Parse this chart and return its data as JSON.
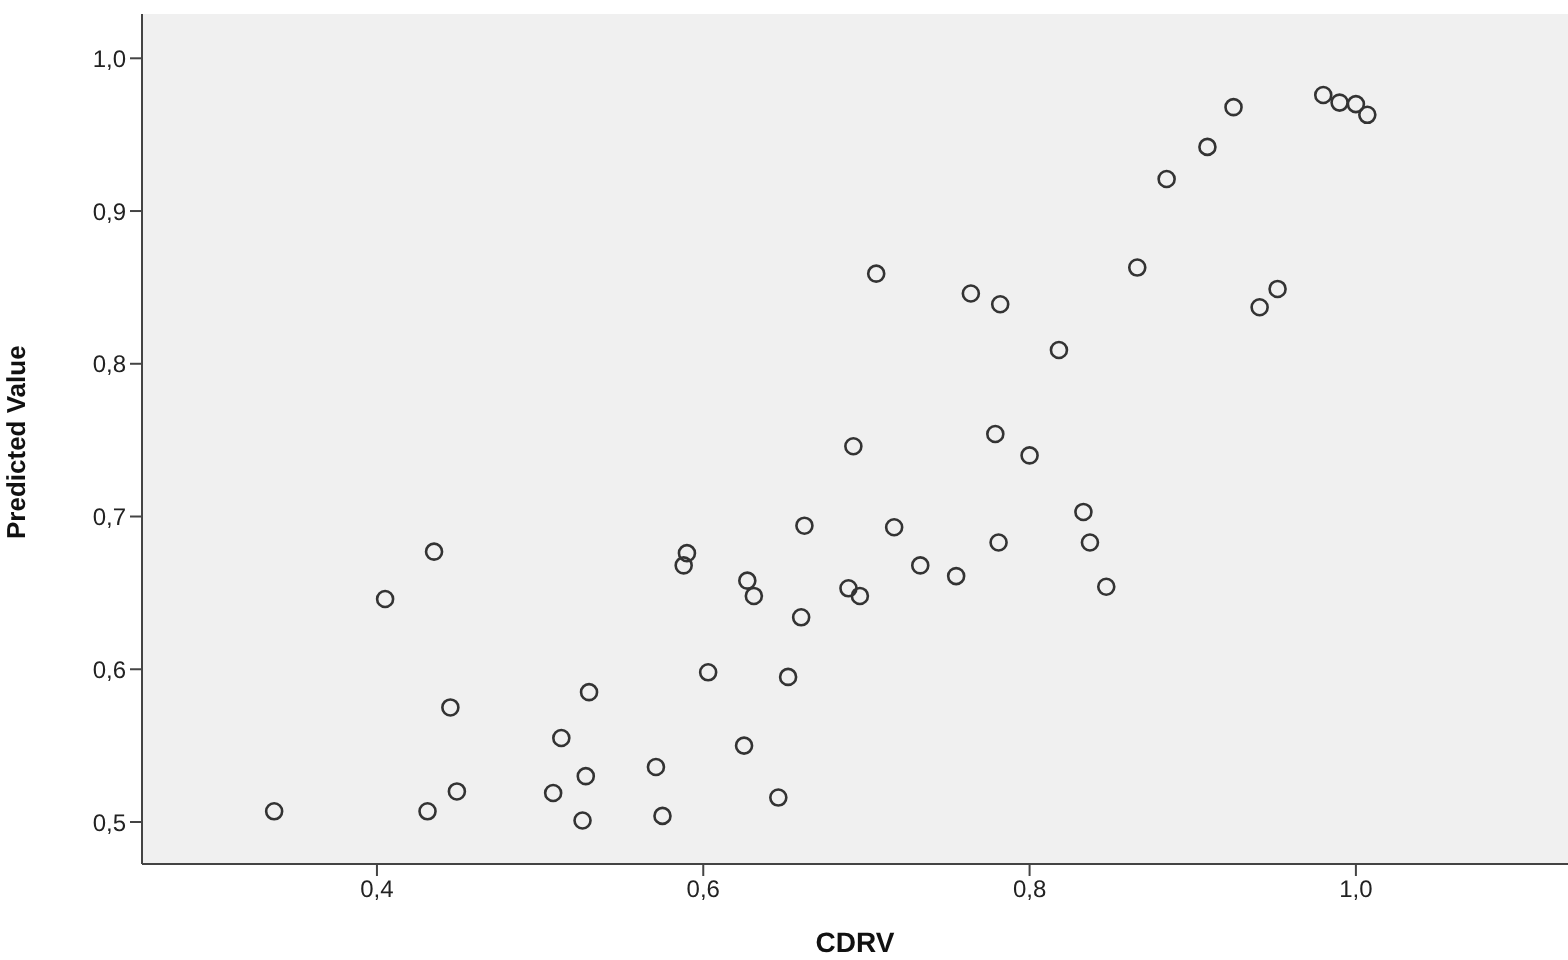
{
  "chart_data": {
    "type": "scatter",
    "xlabel": "CDRV",
    "ylabel": "Predicted Value",
    "x": [
      0.337,
      0.405,
      0.435,
      0.445,
      0.431,
      0.449,
      0.508,
      0.513,
      0.53,
      0.528,
      0.526,
      0.571,
      0.575,
      0.59,
      0.588,
      0.603,
      0.625,
      0.627,
      0.631,
      0.646,
      0.652,
      0.66,
      0.662,
      0.689,
      0.696,
      0.717,
      0.733,
      0.755,
      0.781,
      0.833,
      0.837,
      0.847,
      0.706,
      0.764,
      0.782,
      0.866,
      0.818,
      0.884,
      0.909,
      0.925,
      0.98,
      0.99,
      1.0,
      1.007,
      0.692,
      0.779,
      0.8,
      0.941,
      0.952
    ],
    "values": [
      0.507,
      0.646,
      0.677,
      0.575,
      0.507,
      0.52,
      0.519,
      0.555,
      0.585,
      0.53,
      0.501,
      0.536,
      0.504,
      0.676,
      0.668,
      0.598,
      0.55,
      0.658,
      0.648,
      0.516,
      0.595,
      0.634,
      0.694,
      0.653,
      0.648,
      0.693,
      0.668,
      0.661,
      0.683,
      0.703,
      0.683,
      0.654,
      0.859,
      0.846,
      0.839,
      0.863,
      0.809,
      0.921,
      0.942,
      0.968,
      0.976,
      0.971,
      0.97,
      0.963,
      0.746,
      0.754,
      0.74,
      0.837,
      0.849
    ],
    "color": "#333333",
    "marker": "circle",
    "xlim": [
      0.256,
      1.13
    ],
    "xticks": [
      {
        "value": 0.4,
        "label": "0,4"
      },
      {
        "value": 0.6,
        "label": "0,6"
      },
      {
        "value": 0.8,
        "label": "0,8"
      },
      {
        "value": 1.0,
        "label": "1,0"
      }
    ],
    "ylim": [
      0.4725,
      1.029
    ],
    "yticks": [
      {
        "value": 0.5,
        "label": "0,5"
      },
      {
        "value": 0.6,
        "label": "0,6"
      },
      {
        "value": 0.7,
        "label": "0,7"
      },
      {
        "value": 0.8,
        "label": "0,8"
      },
      {
        "value": 0.9,
        "label": "0,9"
      },
      {
        "value": 1.0,
        "label": "1,0"
      }
    ]
  }
}
